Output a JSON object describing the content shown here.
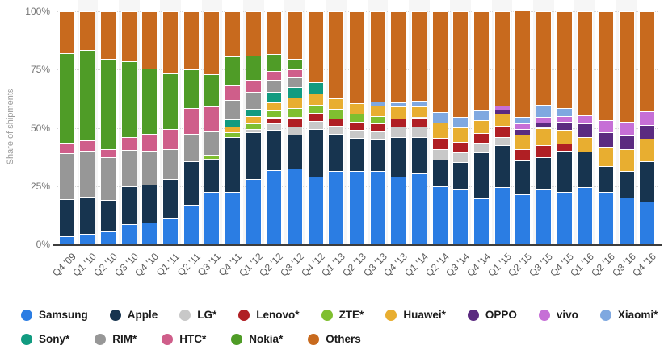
{
  "chart_data": {
    "type": "bar",
    "stacked": true,
    "title": "",
    "xlabel": "",
    "ylabel": "Share of shipments",
    "ylim": [
      0,
      100
    ],
    "y_ticks": [
      "0%",
      "25%",
      "50%",
      "75%",
      "100%"
    ],
    "y_tick_values": [
      0,
      25,
      50,
      75,
      100
    ],
    "grid": "horizontal-dotted",
    "legend_position": "bottom",
    "legend_rows": [
      9,
      5
    ],
    "categories": [
      "Q4 '09",
      "Q1 '10",
      "Q2 '10",
      "Q3 '10",
      "Q4 '10",
      "Q1 '11",
      "Q2 '11",
      "Q3 '11",
      "Q4 '11",
      "Q1 '12",
      "Q2 '12",
      "Q3 '12",
      "Q4 '12",
      "Q1 '13",
      "Q2 '13",
      "Q3 '13",
      "Q4 '13",
      "Q1 '14",
      "Q2 '14",
      "Q3 '14",
      "Q4 '14",
      "Q1 '15",
      "Q2 '15",
      "Q3 '15",
      "Q4 '15",
      "Q1 '16",
      "Q2 '16",
      "Q3 '16",
      "Q4 '16"
    ],
    "series": [
      {
        "name": "Samsung",
        "color": "#2b7de3",
        "values": [
          3.5,
          4.5,
          5.5,
          8.5,
          9.5,
          11.5,
          17,
          22.5,
          22.5,
          28,
          32,
          32.5,
          29,
          31.5,
          31.5,
          31.5,
          29,
          30.5,
          25,
          23.5,
          19.8,
          24.5,
          21.5,
          23.5,
          22.5,
          24.5,
          22.5,
          20,
          18.5
        ]
      },
      {
        "name": "Apple",
        "color": "#17344f",
        "values": [
          16,
          16,
          13.5,
          16.5,
          16,
          16.5,
          18.5,
          14,
          23.5,
          20,
          17,
          14.5,
          20.5,
          16,
          14,
          13.5,
          17,
          15.5,
          11.5,
          11.8,
          19.8,
          18,
          14.5,
          14,
          17.5,
          15.2,
          11,
          11.6,
          17
        ]
      },
      {
        "name": "LG*",
        "color": "#c8c8c8",
        "values": [
          0,
          0,
          0,
          0,
          0,
          0,
          0,
          0,
          0,
          1.5,
          3,
          3.5,
          3.5,
          3.5,
          3.5,
          3.5,
          4.5,
          4.5,
          4.5,
          4.3,
          4,
          3.5,
          0,
          0,
          0,
          0,
          0,
          0,
          0
        ]
      },
      {
        "name": "Lenovo*",
        "color": "#b01f24",
        "values": [
          0,
          0,
          0,
          0,
          0,
          0,
          0,
          0,
          0,
          0,
          2.5,
          4,
          3.5,
          3,
          3.5,
          3.5,
          3.5,
          4,
          4.5,
          4.4,
          4.2,
          4.7,
          4.7,
          5,
          3.4,
          0,
          0,
          0,
          0
        ]
      },
      {
        "name": "ZTE*",
        "color": "#7fbf30",
        "values": [
          0,
          0,
          0,
          0,
          0,
          0,
          0,
          2,
          2,
          2.5,
          3,
          4,
          3.5,
          4,
          3.5,
          3,
          0,
          0,
          0,
          0,
          0,
          0,
          0,
          0,
          0,
          0,
          0,
          0,
          0
        ]
      },
      {
        "name": "Huawei*",
        "color": "#e8ae30",
        "values": [
          0,
          0,
          0,
          0,
          0,
          0,
          0,
          0,
          2.5,
          3,
          3.5,
          4.5,
          4.8,
          4.5,
          4.5,
          4.5,
          5,
          4.8,
          6.8,
          6.3,
          5.5,
          5.3,
          6.5,
          7.5,
          5.8,
          6.4,
          8.2,
          9.3,
          9.8
        ]
      },
      {
        "name": "OPPO",
        "color": "#5b2a80",
        "values": [
          0,
          0,
          0,
          0,
          0,
          0,
          0,
          0,
          0,
          0,
          0,
          0,
          0,
          0,
          0,
          0,
          0,
          0,
          0,
          0,
          0,
          1.9,
          2.3,
          2.3,
          3.5,
          5.8,
          6.4,
          5.7,
          5.8
        ]
      },
      {
        "name": "vivo",
        "color": "#c66fd6",
        "values": [
          0,
          0,
          0,
          0,
          0,
          0,
          0,
          0,
          0,
          0,
          0,
          0,
          0,
          0,
          0,
          0,
          0,
          0,
          0,
          0,
          0,
          1.7,
          2.3,
          2.3,
          2.3,
          3.5,
          5.3,
          5.9,
          5.9
        ]
      },
      {
        "name": "Xiaomi*",
        "color": "#7fa8e0",
        "values": [
          0,
          0,
          0,
          0,
          0,
          0,
          0,
          0,
          0,
          0,
          0,
          0,
          0,
          0,
          0,
          1.7,
          1.8,
          2.3,
          4.5,
          4.5,
          4.2,
          0,
          2.9,
          5.3,
          3.5,
          0,
          0,
          0,
          0
        ]
      },
      {
        "name": "Sony*",
        "color": "#119b80",
        "values": [
          0,
          0,
          0,
          0,
          0,
          0,
          0,
          0,
          3,
          3,
          4.5,
          4.5,
          4.7,
          0,
          0,
          0,
          0,
          0,
          0,
          0,
          0,
          0,
          0,
          0,
          0,
          0,
          0,
          0,
          0
        ]
      },
      {
        "name": "RIM*",
        "color": "#979797",
        "values": [
          19.5,
          19.5,
          18.5,
          15.5,
          14.5,
          13,
          12,
          10,
          8.5,
          7.5,
          5,
          4,
          0,
          0,
          0,
          0,
          0,
          0,
          0,
          0,
          0,
          0,
          0,
          0,
          0,
          0,
          0,
          0,
          0
        ]
      },
      {
        "name": "HTC*",
        "color": "#cf5e8a",
        "values": [
          4.5,
          4.8,
          3.5,
          5.5,
          7.5,
          8.5,
          11,
          10.5,
          6,
          5,
          4,
          3.5,
          0,
          0,
          0,
          0,
          0,
          0,
          0,
          0,
          0,
          0,
          0,
          0,
          0,
          0,
          0,
          0,
          0
        ]
      },
      {
        "name": "Nokia*",
        "color": "#4f9c27",
        "values": [
          38.5,
          38.7,
          38.5,
          32.5,
          28,
          24,
          16.5,
          14,
          12.5,
          10.5,
          7,
          4.5,
          0,
          0,
          0,
          0,
          0,
          0,
          0,
          0,
          0,
          0,
          0,
          0,
          0,
          0,
          0,
          0,
          0
        ]
      },
      {
        "name": "Others",
        "color": "#c86a1e",
        "values": [
          18,
          16.5,
          20.5,
          21.5,
          24.5,
          26.5,
          25,
          27,
          19.5,
          19,
          18.5,
          20.5,
          30.5,
          37.5,
          39.5,
          38.8,
          39.2,
          38.4,
          43.2,
          45.2,
          42.5,
          40.4,
          45.8,
          40.1,
          41.5,
          44.6,
          46.6,
          47.5,
          43
        ]
      }
    ]
  }
}
